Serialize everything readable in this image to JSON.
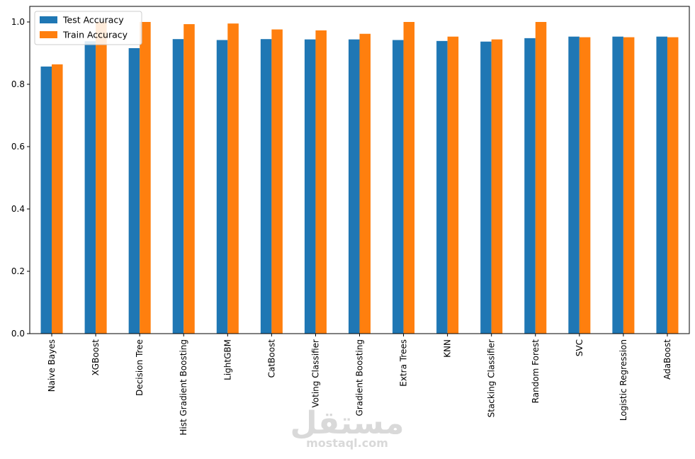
{
  "chart_data": {
    "type": "bar",
    "title": "",
    "xlabel": "",
    "ylabel": "",
    "ylim": [
      0,
      1.05
    ],
    "yticks": [
      "0.0",
      "0.2",
      "0.4",
      "0.6",
      "0.8",
      "1.0"
    ],
    "grid": false,
    "legend_position": "top-left",
    "categories": [
      "Naive Bayes",
      "XGBoost",
      "Decision Tree",
      "Hist Gradient Boosting",
      "LightGBM",
      "CatBoost",
      "Voting Classifier",
      "Gradient Boosting",
      "Extra Trees",
      "KNN",
      "Stacking Classifier",
      "Random Forest",
      "SVC",
      "Logistic Regression",
      "AdaBoost"
    ],
    "series": [
      {
        "name": "Test Accuracy",
        "color": "#1f77b4",
        "values": [
          0.857,
          0.938,
          0.916,
          0.945,
          0.942,
          0.945,
          0.944,
          0.944,
          0.942,
          0.939,
          0.937,
          0.948,
          0.953,
          0.953,
          0.953
        ]
      },
      {
        "name": "Train Accuracy",
        "color": "#ff7f0e",
        "values": [
          0.864,
          1.0,
          1.0,
          0.993,
          0.995,
          0.976,
          0.973,
          0.962,
          1.0,
          0.953,
          0.944,
          1.0,
          0.951,
          0.951,
          0.951
        ]
      }
    ]
  },
  "watermark": {
    "arabic": "مستقل",
    "latin": "mostaql.com"
  }
}
